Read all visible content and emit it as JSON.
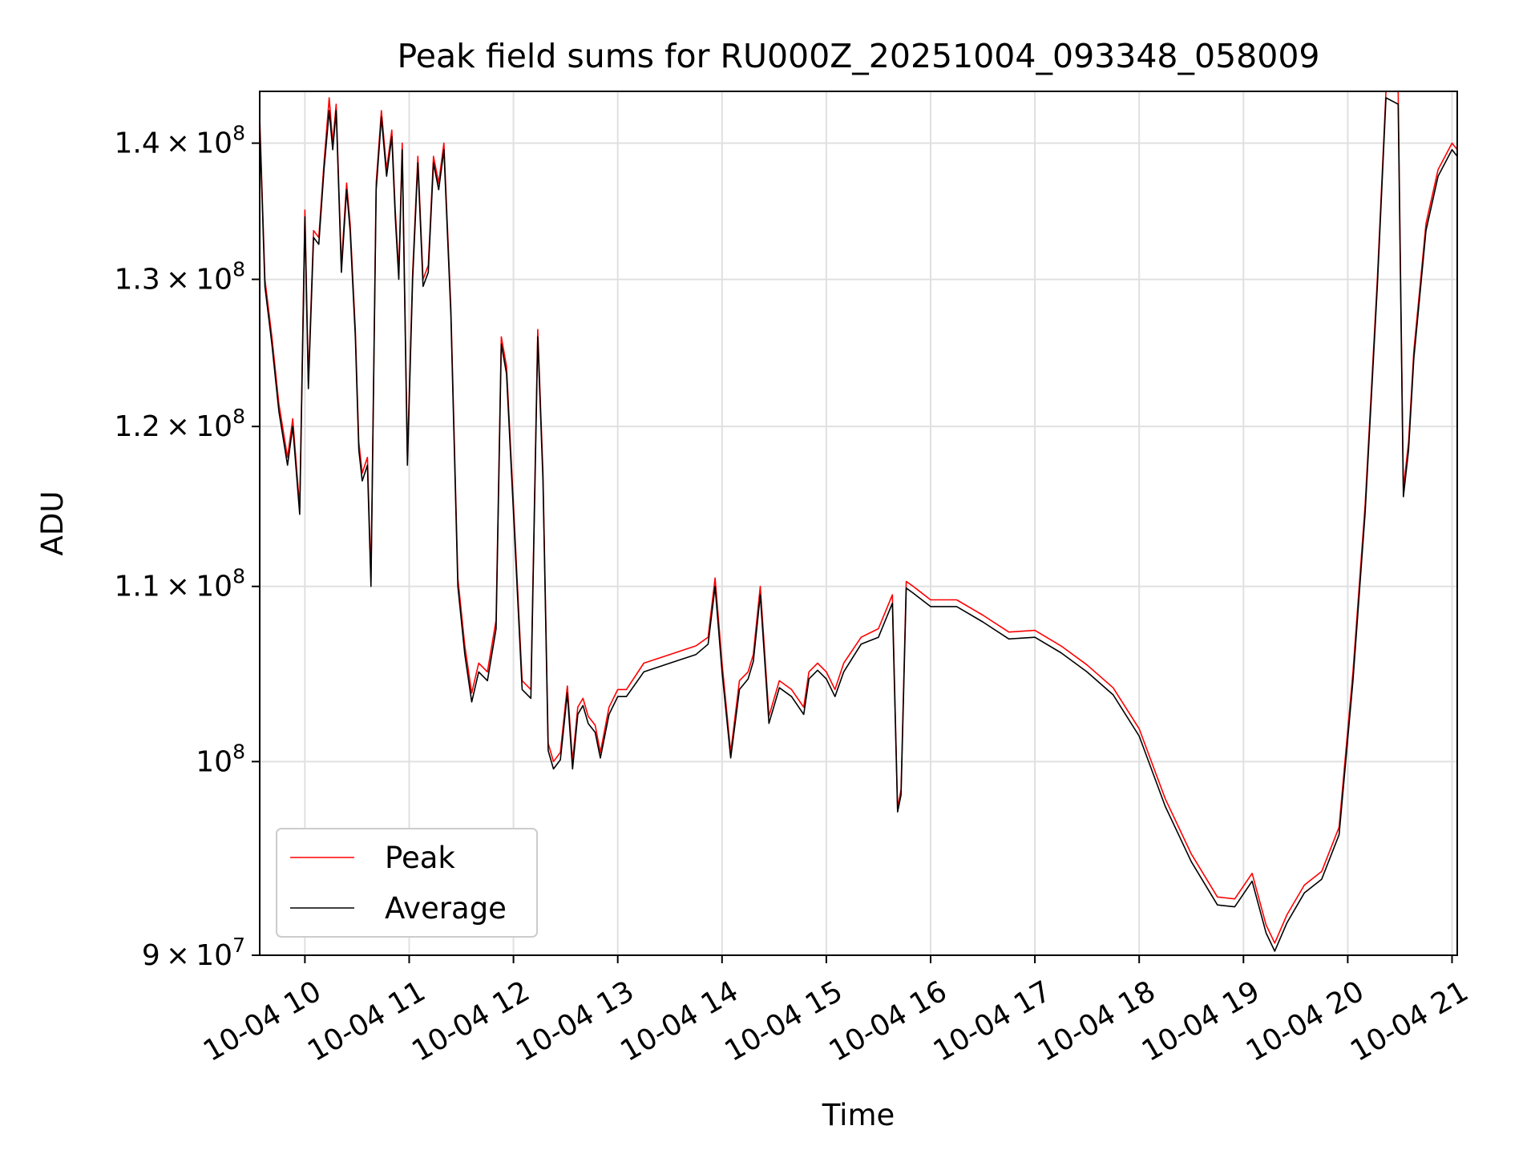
{
  "colors": {
    "background": "#ffffff",
    "grid": "#e0e0e0",
    "axis": "#000000",
    "legend_border": "#cccccc"
  },
  "chart_data": {
    "type": "line",
    "title": "Peak field sums for RU000Z_20251004_093348_058009",
    "xlabel": "Time",
    "ylabel": "ADU",
    "y_scale": "log",
    "grid": true,
    "legend_position": "lower-left",
    "xlim": [
      "2025-10-04 09:34",
      "2025-10-04 21:03"
    ],
    "ylim": [
      90000000,
      144000000
    ],
    "x_ticks": [
      {
        "t": "2025-10-04 10:00",
        "label": "10-04 10"
      },
      {
        "t": "2025-10-04 11:00",
        "label": "10-04 11"
      },
      {
        "t": "2025-10-04 12:00",
        "label": "10-04 12"
      },
      {
        "t": "2025-10-04 13:00",
        "label": "10-04 13"
      },
      {
        "t": "2025-10-04 14:00",
        "label": "10-04 14"
      },
      {
        "t": "2025-10-04 15:00",
        "label": "10-04 15"
      },
      {
        "t": "2025-10-04 16:00",
        "label": "10-04 16"
      },
      {
        "t": "2025-10-04 17:00",
        "label": "10-04 17"
      },
      {
        "t": "2025-10-04 18:00",
        "label": "10-04 18"
      },
      {
        "t": "2025-10-04 19:00",
        "label": "10-04 19"
      },
      {
        "t": "2025-10-04 20:00",
        "label": "10-04 20"
      },
      {
        "t": "2025-10-04 21:00",
        "label": "10-04 21"
      }
    ],
    "y_ticks": [
      {
        "value": 90000000,
        "mantissa": "9",
        "exp": "7"
      },
      {
        "value": 100000000,
        "mantissa": "",
        "exp": "8"
      },
      {
        "value": 110000000,
        "mantissa": "1.1",
        "exp": "8"
      },
      {
        "value": 120000000,
        "mantissa": "1.2",
        "exp": "8"
      },
      {
        "value": 130000000,
        "mantissa": "1.3",
        "exp": "8"
      },
      {
        "value": 140000000,
        "mantissa": "1.4",
        "exp": "8"
      }
    ],
    "series": [
      {
        "name": "Peak",
        "color": "#ff0000",
        "x": [
          "2025-10-04 09:34",
          "2025-10-04 09:37",
          "2025-10-04 09:41",
          "2025-10-04 09:45",
          "2025-10-04 09:50",
          "2025-10-04 09:53",
          "2025-10-04 09:57",
          "2025-10-04 10:00",
          "2025-10-04 10:02",
          "2025-10-04 10:05",
          "2025-10-04 10:08",
          "2025-10-04 10:11",
          "2025-10-04 10:14",
          "2025-10-04 10:16",
          "2025-10-04 10:18",
          "2025-10-04 10:21",
          "2025-10-04 10:24",
          "2025-10-04 10:26",
          "2025-10-04 10:29",
          "2025-10-04 10:31",
          "2025-10-04 10:33",
          "2025-10-04 10:36",
          "2025-10-04 10:38",
          "2025-10-04 10:41",
          "2025-10-04 10:44",
          "2025-10-04 10:47",
          "2025-10-04 10:50",
          "2025-10-04 10:52",
          "2025-10-04 10:54",
          "2025-10-04 10:56",
          "2025-10-04 10:59",
          "2025-10-04 11:02",
          "2025-10-04 11:05",
          "2025-10-04 11:08",
          "2025-10-04 11:11",
          "2025-10-04 11:14",
          "2025-10-04 11:17",
          "2025-10-04 11:20",
          "2025-10-04 11:24",
          "2025-10-04 11:28",
          "2025-10-04 11:32",
          "2025-10-04 11:36",
          "2025-10-04 11:40",
          "2025-10-04 11:45",
          "2025-10-04 11:50",
          "2025-10-04 11:53",
          "2025-10-04 11:56",
          "2025-10-04 12:00",
          "2025-10-04 12:05",
          "2025-10-04 12:10",
          "2025-10-04 12:14",
          "2025-10-04 12:17",
          "2025-10-04 12:20",
          "2025-10-04 12:23",
          "2025-10-04 12:27",
          "2025-10-04 12:31",
          "2025-10-04 12:34",
          "2025-10-04 12:37",
          "2025-10-04 12:40",
          "2025-10-04 12:43",
          "2025-10-04 12:47",
          "2025-10-04 12:50",
          "2025-10-04 12:55",
          "2025-10-04 13:00",
          "2025-10-04 13:05",
          "2025-10-04 13:15",
          "2025-10-04 13:30",
          "2025-10-04 13:45",
          "2025-10-04 13:52",
          "2025-10-04 13:56",
          "2025-10-04 14:00",
          "2025-10-04 14:05",
          "2025-10-04 14:10",
          "2025-10-04 14:15",
          "2025-10-04 14:18",
          "2025-10-04 14:22",
          "2025-10-04 14:27",
          "2025-10-04 14:33",
          "2025-10-04 14:40",
          "2025-10-04 14:47",
          "2025-10-04 14:50",
          "2025-10-04 14:55",
          "2025-10-04 15:00",
          "2025-10-04 15:05",
          "2025-10-04 15:10",
          "2025-10-04 15:20",
          "2025-10-04 15:30",
          "2025-10-04 15:38",
          "2025-10-04 15:41",
          "2025-10-04 15:43",
          "2025-10-04 15:46",
          "2025-10-04 15:50",
          "2025-10-04 16:00",
          "2025-10-04 16:15",
          "2025-10-04 16:30",
          "2025-10-04 16:45",
          "2025-10-04 17:00",
          "2025-10-04 17:15",
          "2025-10-04 17:30",
          "2025-10-04 17:45",
          "2025-10-04 18:00",
          "2025-10-04 18:15",
          "2025-10-04 18:30",
          "2025-10-04 18:45",
          "2025-10-04 18:55",
          "2025-10-04 19:05",
          "2025-10-04 19:13",
          "2025-10-04 19:18",
          "2025-10-04 19:25",
          "2025-10-04 19:35",
          "2025-10-04 19:45",
          "2025-10-04 19:55",
          "2025-10-04 20:03",
          "2025-10-04 20:10",
          "2025-10-04 20:17",
          "2025-10-04 20:22",
          "2025-10-04 20:29",
          "2025-10-04 20:32",
          "2025-10-04 20:35",
          "2025-10-04 20:38",
          "2025-10-04 20:45",
          "2025-10-04 20:52",
          "2025-10-04 21:00",
          "2025-10-04 21:03"
        ],
        "values": [
          142000000,
          130000000,
          126000000,
          121500000,
          118000000,
          120500000,
          114800000,
          135000000,
          123000000,
          133500000,
          133000000,
          138500000,
          143500000,
          140000000,
          143000000,
          131000000,
          137000000,
          134000000,
          126500000,
          119000000,
          117000000,
          118000000,
          110500000,
          137000000,
          142500000,
          138000000,
          141000000,
          135000000,
          130500000,
          140000000,
          118000000,
          130500000,
          139000000,
          130000000,
          131000000,
          139000000,
          137000000,
          140000000,
          128000000,
          110500000,
          106500000,
          103800000,
          105500000,
          105000000,
          108000000,
          126000000,
          124000000,
          115000000,
          104500000,
          104000000,
          126500000,
          117000000,
          101000000,
          100000000,
          100500000,
          104200000,
          100000000,
          103000000,
          103500000,
          102500000,
          102000000,
          100500000,
          103000000,
          104000000,
          104000000,
          105500000,
          106000000,
          106500000,
          107000000,
          110500000,
          105500000,
          100500000,
          104500000,
          105000000,
          106000000,
          110000000,
          102500000,
          104500000,
          104000000,
          103000000,
          105000000,
          105500000,
          105000000,
          104000000,
          105500000,
          107000000,
          107500000,
          109500000,
          97500000,
          98500000,
          110300000,
          110000000,
          109200000,
          109200000,
          108300000,
          107300000,
          107400000,
          106500000,
          105400000,
          104100000,
          101800000,
          98000000,
          95100000,
          92900000,
          92800000,
          94100000,
          91500000,
          90600000,
          92000000,
          93500000,
          94200000,
          96500000,
          105000000,
          115000000,
          130000000,
          144000000,
          144000000,
          116000000,
          119000000,
          125000000,
          134000000,
          138000000,
          140000000,
          139500000
        ]
      },
      {
        "name": "Average",
        "color": "#000000",
        "x": [
          "2025-10-04 09:34",
          "2025-10-04 09:37",
          "2025-10-04 09:41",
          "2025-10-04 09:45",
          "2025-10-04 09:50",
          "2025-10-04 09:53",
          "2025-10-04 09:57",
          "2025-10-04 10:00",
          "2025-10-04 10:02",
          "2025-10-04 10:05",
          "2025-10-04 10:08",
          "2025-10-04 10:11",
          "2025-10-04 10:14",
          "2025-10-04 10:16",
          "2025-10-04 10:18",
          "2025-10-04 10:21",
          "2025-10-04 10:24",
          "2025-10-04 10:26",
          "2025-10-04 10:29",
          "2025-10-04 10:31",
          "2025-10-04 10:33",
          "2025-10-04 10:36",
          "2025-10-04 10:38",
          "2025-10-04 10:41",
          "2025-10-04 10:44",
          "2025-10-04 10:47",
          "2025-10-04 10:50",
          "2025-10-04 10:52",
          "2025-10-04 10:54",
          "2025-10-04 10:56",
          "2025-10-04 10:59",
          "2025-10-04 11:02",
          "2025-10-04 11:05",
          "2025-10-04 11:08",
          "2025-10-04 11:11",
          "2025-10-04 11:14",
          "2025-10-04 11:17",
          "2025-10-04 11:20",
          "2025-10-04 11:24",
          "2025-10-04 11:28",
          "2025-10-04 11:32",
          "2025-10-04 11:36",
          "2025-10-04 11:40",
          "2025-10-04 11:45",
          "2025-10-04 11:50",
          "2025-10-04 11:53",
          "2025-10-04 11:56",
          "2025-10-04 12:00",
          "2025-10-04 12:05",
          "2025-10-04 12:10",
          "2025-10-04 12:14",
          "2025-10-04 12:17",
          "2025-10-04 12:20",
          "2025-10-04 12:23",
          "2025-10-04 12:27",
          "2025-10-04 12:31",
          "2025-10-04 12:34",
          "2025-10-04 12:37",
          "2025-10-04 12:40",
          "2025-10-04 12:43",
          "2025-10-04 12:47",
          "2025-10-04 12:50",
          "2025-10-04 12:55",
          "2025-10-04 13:00",
          "2025-10-04 13:05",
          "2025-10-04 13:15",
          "2025-10-04 13:30",
          "2025-10-04 13:45",
          "2025-10-04 13:52",
          "2025-10-04 13:56",
          "2025-10-04 14:00",
          "2025-10-04 14:05",
          "2025-10-04 14:10",
          "2025-10-04 14:15",
          "2025-10-04 14:18",
          "2025-10-04 14:22",
          "2025-10-04 14:27",
          "2025-10-04 14:33",
          "2025-10-04 14:40",
          "2025-10-04 14:47",
          "2025-10-04 14:50",
          "2025-10-04 14:55",
          "2025-10-04 15:00",
          "2025-10-04 15:05",
          "2025-10-04 15:10",
          "2025-10-04 15:20",
          "2025-10-04 15:30",
          "2025-10-04 15:38",
          "2025-10-04 15:41",
          "2025-10-04 15:43",
          "2025-10-04 15:46",
          "2025-10-04 15:50",
          "2025-10-04 16:00",
          "2025-10-04 16:15",
          "2025-10-04 16:30",
          "2025-10-04 16:45",
          "2025-10-04 17:00",
          "2025-10-04 17:15",
          "2025-10-04 17:30",
          "2025-10-04 17:45",
          "2025-10-04 18:00",
          "2025-10-04 18:15",
          "2025-10-04 18:30",
          "2025-10-04 18:45",
          "2025-10-04 18:55",
          "2025-10-04 19:05",
          "2025-10-04 19:13",
          "2025-10-04 19:18",
          "2025-10-04 19:25",
          "2025-10-04 19:35",
          "2025-10-04 19:45",
          "2025-10-04 19:55",
          "2025-10-04 20:03",
          "2025-10-04 20:10",
          "2025-10-04 20:17",
          "2025-10-04 20:22",
          "2025-10-04 20:29",
          "2025-10-04 20:32",
          "2025-10-04 20:35",
          "2025-10-04 20:38",
          "2025-10-04 20:45",
          "2025-10-04 20:52",
          "2025-10-04 21:00",
          "2025-10-04 21:03"
        ],
        "values": [
          141500000,
          129500000,
          125500000,
          121000000,
          117500000,
          120000000,
          114400000,
          134500000,
          122500000,
          133000000,
          132500000,
          138000000,
          142500000,
          139500000,
          142500000,
          130500000,
          136500000,
          133500000,
          126000000,
          118500000,
          116500000,
          117500000,
          110000000,
          136500000,
          142000000,
          137500000,
          140500000,
          134500000,
          130000000,
          139500000,
          117500000,
          130000000,
          138500000,
          129500000,
          130500000,
          138500000,
          136500000,
          139500000,
          127500000,
          110000000,
          106000000,
          103300000,
          105000000,
          104500000,
          107500000,
          125500000,
          123500000,
          114500000,
          104000000,
          103500000,
          126000000,
          116500000,
          100600000,
          99600000,
          100100000,
          103800000,
          99600000,
          102600000,
          103100000,
          102100000,
          101600000,
          100200000,
          102600000,
          103600000,
          103600000,
          105000000,
          105500000,
          106000000,
          106600000,
          110000000,
          105000000,
          100200000,
          104000000,
          104600000,
          105600000,
          109500000,
          102100000,
          104100000,
          103600000,
          102600000,
          104600000,
          105100000,
          104600000,
          103600000,
          105000000,
          106600000,
          107000000,
          109000000,
          97300000,
          98200000,
          109900000,
          109600000,
          108800000,
          108800000,
          107900000,
          106900000,
          107000000,
          106100000,
          105000000,
          103700000,
          101400000,
          97600000,
          94700000,
          92500000,
          92400000,
          93700000,
          91100000,
          90200000,
          91600000,
          93100000,
          93800000,
          96100000,
          104500000,
          114500000,
          129500000,
          143500000,
          143000000,
          115500000,
          118500000,
          124500000,
          133500000,
          137500000,
          139500000,
          139000000
        ]
      }
    ]
  }
}
